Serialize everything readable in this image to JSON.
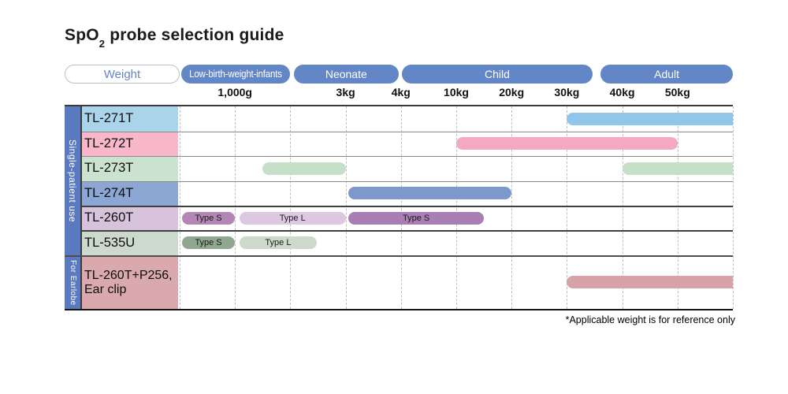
{
  "title": {
    "text_main": "SpO",
    "subscript": "2",
    "text_rest": " probe selection guide"
  },
  "header": {
    "weight_label": "Weight",
    "weight_label_color": "#6386c7",
    "pill_color": "#6386c7",
    "categories": [
      {
        "label": "Low-birth-weight-infants",
        "start": 0.03,
        "end": 2.0,
        "condensed": true
      },
      {
        "label": "Neonate",
        "start": 2.06,
        "end": 3.96
      },
      {
        "label": "Child",
        "start": 4.02,
        "end": 7.46
      },
      {
        "label": "Adult",
        "start": 7.61,
        "end": 10.0
      }
    ]
  },
  "chart_data": {
    "type": "range-bar",
    "axis": {
      "unit_count": 10,
      "ticks": [
        {
          "label": "1,000g",
          "u": 1
        },
        {
          "label": "3kg",
          "u": 3
        },
        {
          "label": "4kg",
          "u": 4
        },
        {
          "label": "10kg",
          "u": 5
        },
        {
          "label": "20kg",
          "u": 6
        },
        {
          "label": "30kg",
          "u": 7
        },
        {
          "label": "40kg",
          "u": 8
        },
        {
          "label": "50kg",
          "u": 9
        }
      ],
      "grid": "dashed-vertical"
    },
    "sections": [
      {
        "name": "Single-patient use",
        "sidebar_color": "#5a79bf",
        "rows": [
          {
            "model": "TL-271T",
            "label_bg": "#a9d4e9",
            "bars": [
              {
                "start": 7.0,
                "end": 10.0,
                "color": "#90c6e9",
                "flat_right": true,
                "range": "30kg and above"
              }
            ]
          },
          {
            "model": "TL-272T",
            "label_bg": "#f8b7cb",
            "bars": [
              {
                "start": 5.0,
                "end": 9.0,
                "color": "#f4a8c2",
                "range": "10kg to 50kg"
              }
            ]
          },
          {
            "model": "TL-273T",
            "label_bg": "#cbe2cf",
            "bars": [
              {
                "start": 1.5,
                "end": 3.0,
                "color": "#c6dfc9",
                "range": "approx 2kg to 3kg"
              },
              {
                "start": 8.0,
                "end": 10.0,
                "color": "#c6dfc9",
                "flat_right": true,
                "range": "40kg and above"
              }
            ]
          },
          {
            "model": "TL-274T",
            "label_bg": "#8ca7d3",
            "bars": [
              {
                "start": 3.05,
                "end": 6.0,
                "color": "#7c98cc",
                "range": "3kg to 20kg"
              }
            ]
          },
          {
            "model": "TL-260T",
            "label_bg": "#d8c3dc",
            "bars": [
              {
                "start": 0.04,
                "end": 1.0,
                "color": "#b286b6",
                "label": "Type S",
                "range": "up to 1,000g"
              },
              {
                "start": 1.08,
                "end": 3.0,
                "color": "#ddc8e1",
                "label": "Type L",
                "range": "1,000g to 3kg"
              },
              {
                "start": 3.05,
                "end": 5.5,
                "color": "#aa7eb4",
                "label": "Type S",
                "range": "3kg to approx 15kg"
              }
            ]
          },
          {
            "model": "TL-535U",
            "label_bg": "#cdd9cc",
            "bars": [
              {
                "start": 0.04,
                "end": 1.0,
                "color": "#90a88f",
                "label": "Type S",
                "range": "up to 1,000g"
              },
              {
                "start": 1.08,
                "end": 2.48,
                "color": "#cdd9cb",
                "label": "Type L",
                "range": "1,000g to approx 2.5kg"
              }
            ]
          }
        ]
      },
      {
        "name": "For Earlobe",
        "sidebar_color": "#5a79bf",
        "rows": [
          {
            "model": "TL-260T+P256,\nEar clip",
            "label_bg": "#d9a9ad",
            "bars": [
              {
                "start": 7.0,
                "end": 10.0,
                "color": "#d7a2a8",
                "flat_right": true,
                "range": "30kg and above"
              }
            ]
          }
        ]
      }
    ]
  },
  "footnote": "*Applicable weight is for reference only"
}
